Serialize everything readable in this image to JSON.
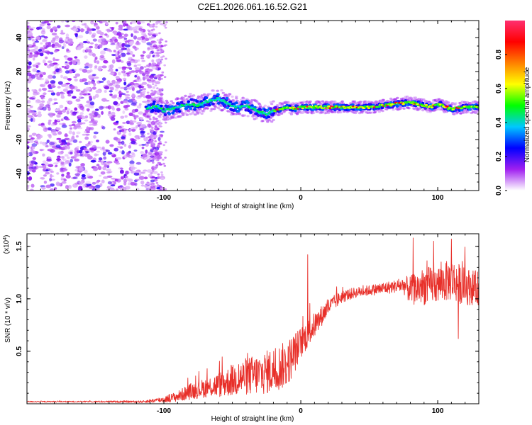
{
  "chart_data": [
    {
      "type": "heatmap",
      "title": "C2E1.2026.061.16.52.G21",
      "xlabel": "Height of straight line (km)",
      "ylabel": "Frequency (Hz)",
      "xlim": [
        -200,
        130
      ],
      "ylim": [
        -50,
        50
      ],
      "xticks": [
        -100,
        0,
        100
      ],
      "yticks": [
        -40,
        -20,
        0,
        20,
        40
      ],
      "ridge": {
        "x": [
          -112,
          -105,
          -100,
          -95,
          -90,
          -85,
          -80,
          -75,
          -70,
          -65,
          -60,
          -55,
          -50,
          -45,
          -40,
          -35,
          -30,
          -25,
          -20,
          -15,
          -10,
          -5,
          0,
          10,
          20,
          30,
          40,
          50,
          60,
          70,
          80,
          85,
          90,
          95,
          100,
          110,
          120,
          130
        ],
        "freq": [
          -2,
          0,
          -3,
          -2,
          -1,
          0,
          1,
          0,
          2,
          3,
          4,
          2,
          0,
          -1,
          0,
          -2,
          -4,
          -5,
          -3,
          -2,
          -1,
          -2,
          -1,
          -1,
          -1,
          -1,
          -1,
          -1,
          0,
          1,
          2,
          1,
          0,
          -1,
          1,
          -2,
          -1,
          -1
        ]
      },
      "colorbar": {
        "label": "Normalized spectral amplitude",
        "range": [
          0,
          1
        ],
        "ticks": [
          0.0,
          0.2,
          0.4,
          0.6,
          0.8
        ],
        "colors": [
          "#ffffff",
          "#a020f0",
          "#0000ff",
          "#00c8ff",
          "#00ff00",
          "#ffff00",
          "#ff8000",
          "#ff0000",
          "#ff3070"
        ]
      }
    },
    {
      "type": "line",
      "xlabel": "Height of straight line (km)",
      "ylabel": "SNR (10 * v/v)",
      "yscale_label": "(x10",
      "yscale_exp": "4",
      "xlim": [
        -200,
        130
      ],
      "ylim": [
        0,
        1.62
      ],
      "xticks": [
        -100,
        0,
        100
      ],
      "yticks": [
        0.5,
        1.0,
        1.5
      ],
      "color": "#e8302a",
      "envelope": {
        "x": [
          -200,
          -160,
          -115,
          -100,
          -90,
          -80,
          -70,
          -60,
          -50,
          -40,
          -30,
          -20,
          -10,
          -5,
          0,
          10,
          20,
          30,
          40,
          50,
          60,
          70,
          75,
          80,
          90,
          100,
          110,
          120,
          130
        ],
        "mean": [
          0.02,
          0.02,
          0.02,
          0.04,
          0.07,
          0.12,
          0.15,
          0.18,
          0.22,
          0.26,
          0.28,
          0.32,
          0.38,
          0.48,
          0.58,
          0.75,
          0.92,
          1.02,
          1.06,
          1.08,
          1.1,
          1.12,
          1.13,
          1.08,
          1.12,
          1.14,
          1.18,
          1.12,
          1.1
        ],
        "amp": [
          0.006,
          0.006,
          0.01,
          0.03,
          0.05,
          0.08,
          0.09,
          0.12,
          0.15,
          0.18,
          0.2,
          0.22,
          0.22,
          0.2,
          0.15,
          0.12,
          0.08,
          0.06,
          0.05,
          0.05,
          0.06,
          0.06,
          0.08,
          0.14,
          0.18,
          0.18,
          0.2,
          0.18,
          0.16
        ]
      },
      "spikes": [
        {
          "x": 5,
          "y": 1.42
        },
        {
          "x": 82,
          "y": 1.58
        },
        {
          "x": 97,
          "y": 1.55
        },
        {
          "x": 110,
          "y": 1.57
        },
        {
          "x": 115,
          "y": 0.62
        }
      ]
    }
  ]
}
